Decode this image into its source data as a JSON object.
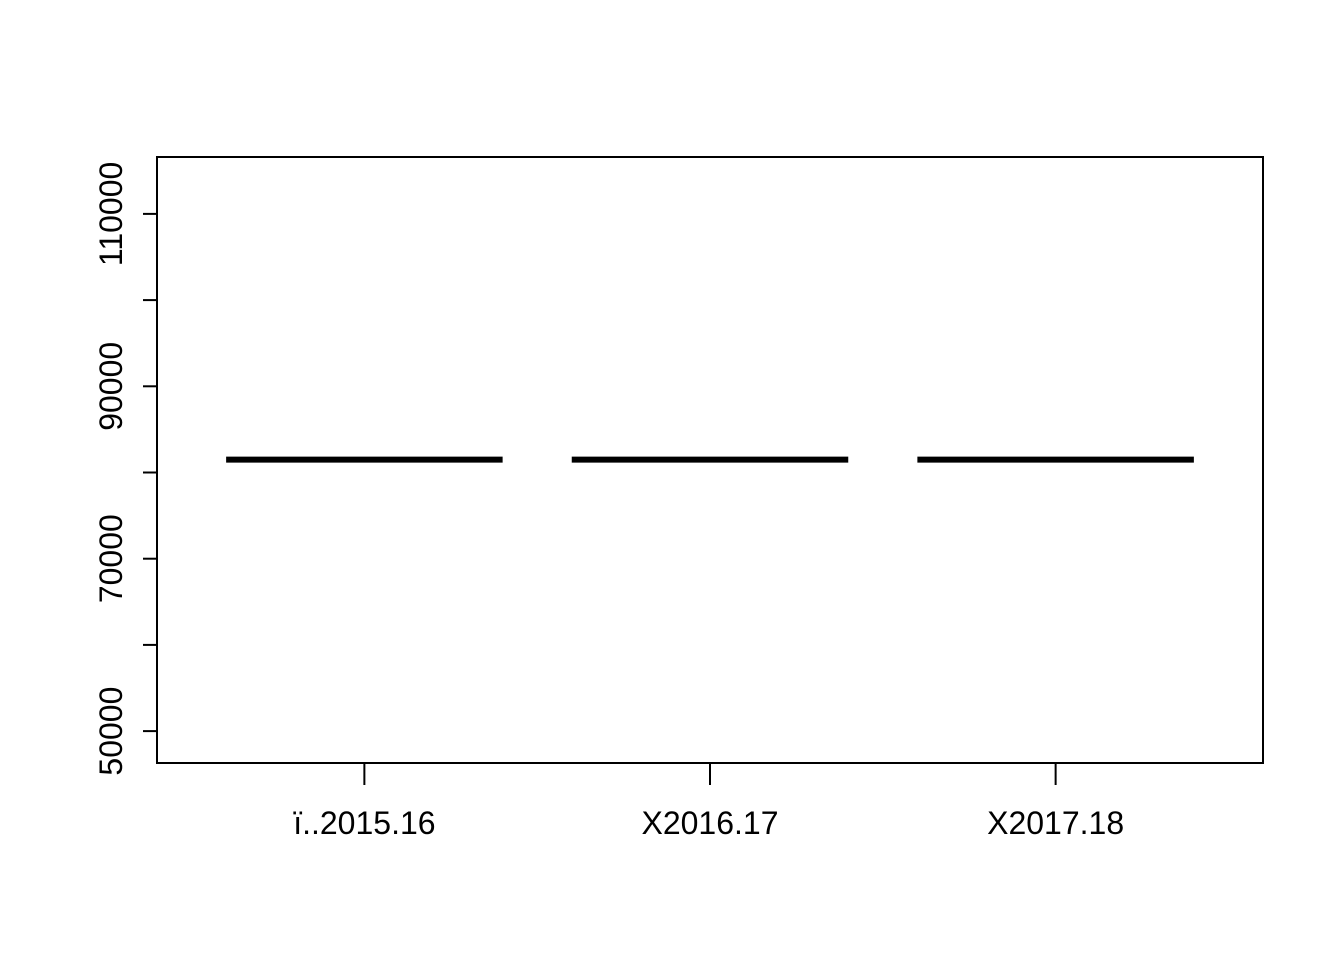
{
  "chart_data": {
    "type": "boxplot",
    "title": "",
    "xlabel": "",
    "ylabel": "",
    "categories": [
      "ï..2015.16",
      "X2016.17",
      "X2017.18"
    ],
    "values": [
      81500,
      81500,
      81500
    ],
    "ylim": [
      46300,
      116600
    ],
    "yticks": [
      50000,
      60000,
      70000,
      80000,
      90000,
      100000,
      110000
    ],
    "ytick_labels": [
      "50000",
      "",
      "70000",
      "",
      "90000",
      "",
      "110000"
    ],
    "grid": false,
    "legend": "none",
    "colors": {
      "line": "#000000",
      "background": "#ffffff"
    }
  }
}
